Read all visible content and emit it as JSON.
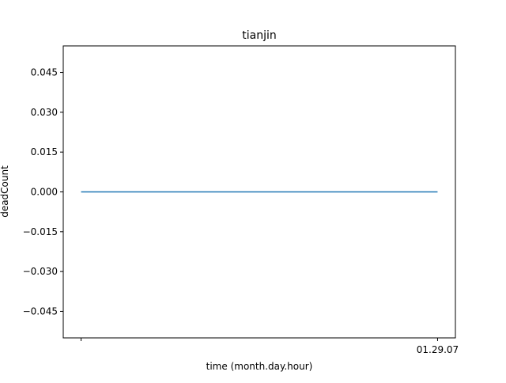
{
  "chart_data": {
    "type": "line",
    "title": "tianjin",
    "xlabel": "time (month.day.hour)",
    "ylabel": "deadCount",
    "x_ticks": [
      {
        "index": 0,
        "label": ""
      },
      {
        "index": 1,
        "label": "01.29.07"
      }
    ],
    "xlim": [
      -0.05,
      1.05
    ],
    "yticks": [
      {
        "value": 0.045,
        "label": "0.045"
      },
      {
        "value": 0.03,
        "label": "0.030"
      },
      {
        "value": 0.015,
        "label": "0.015"
      },
      {
        "value": 0.0,
        "label": "0.000"
      },
      {
        "value": -0.015,
        "label": "−0.015"
      },
      {
        "value": -0.03,
        "label": "−0.030"
      },
      {
        "value": -0.045,
        "label": "−0.045"
      }
    ],
    "ylim": [
      -0.055,
      0.055
    ],
    "grid": false,
    "series": [
      {
        "color": "#1f77b4",
        "points": [
          {
            "x": 0,
            "y": 0
          },
          {
            "x": 1,
            "y": 0
          }
        ]
      }
    ]
  }
}
